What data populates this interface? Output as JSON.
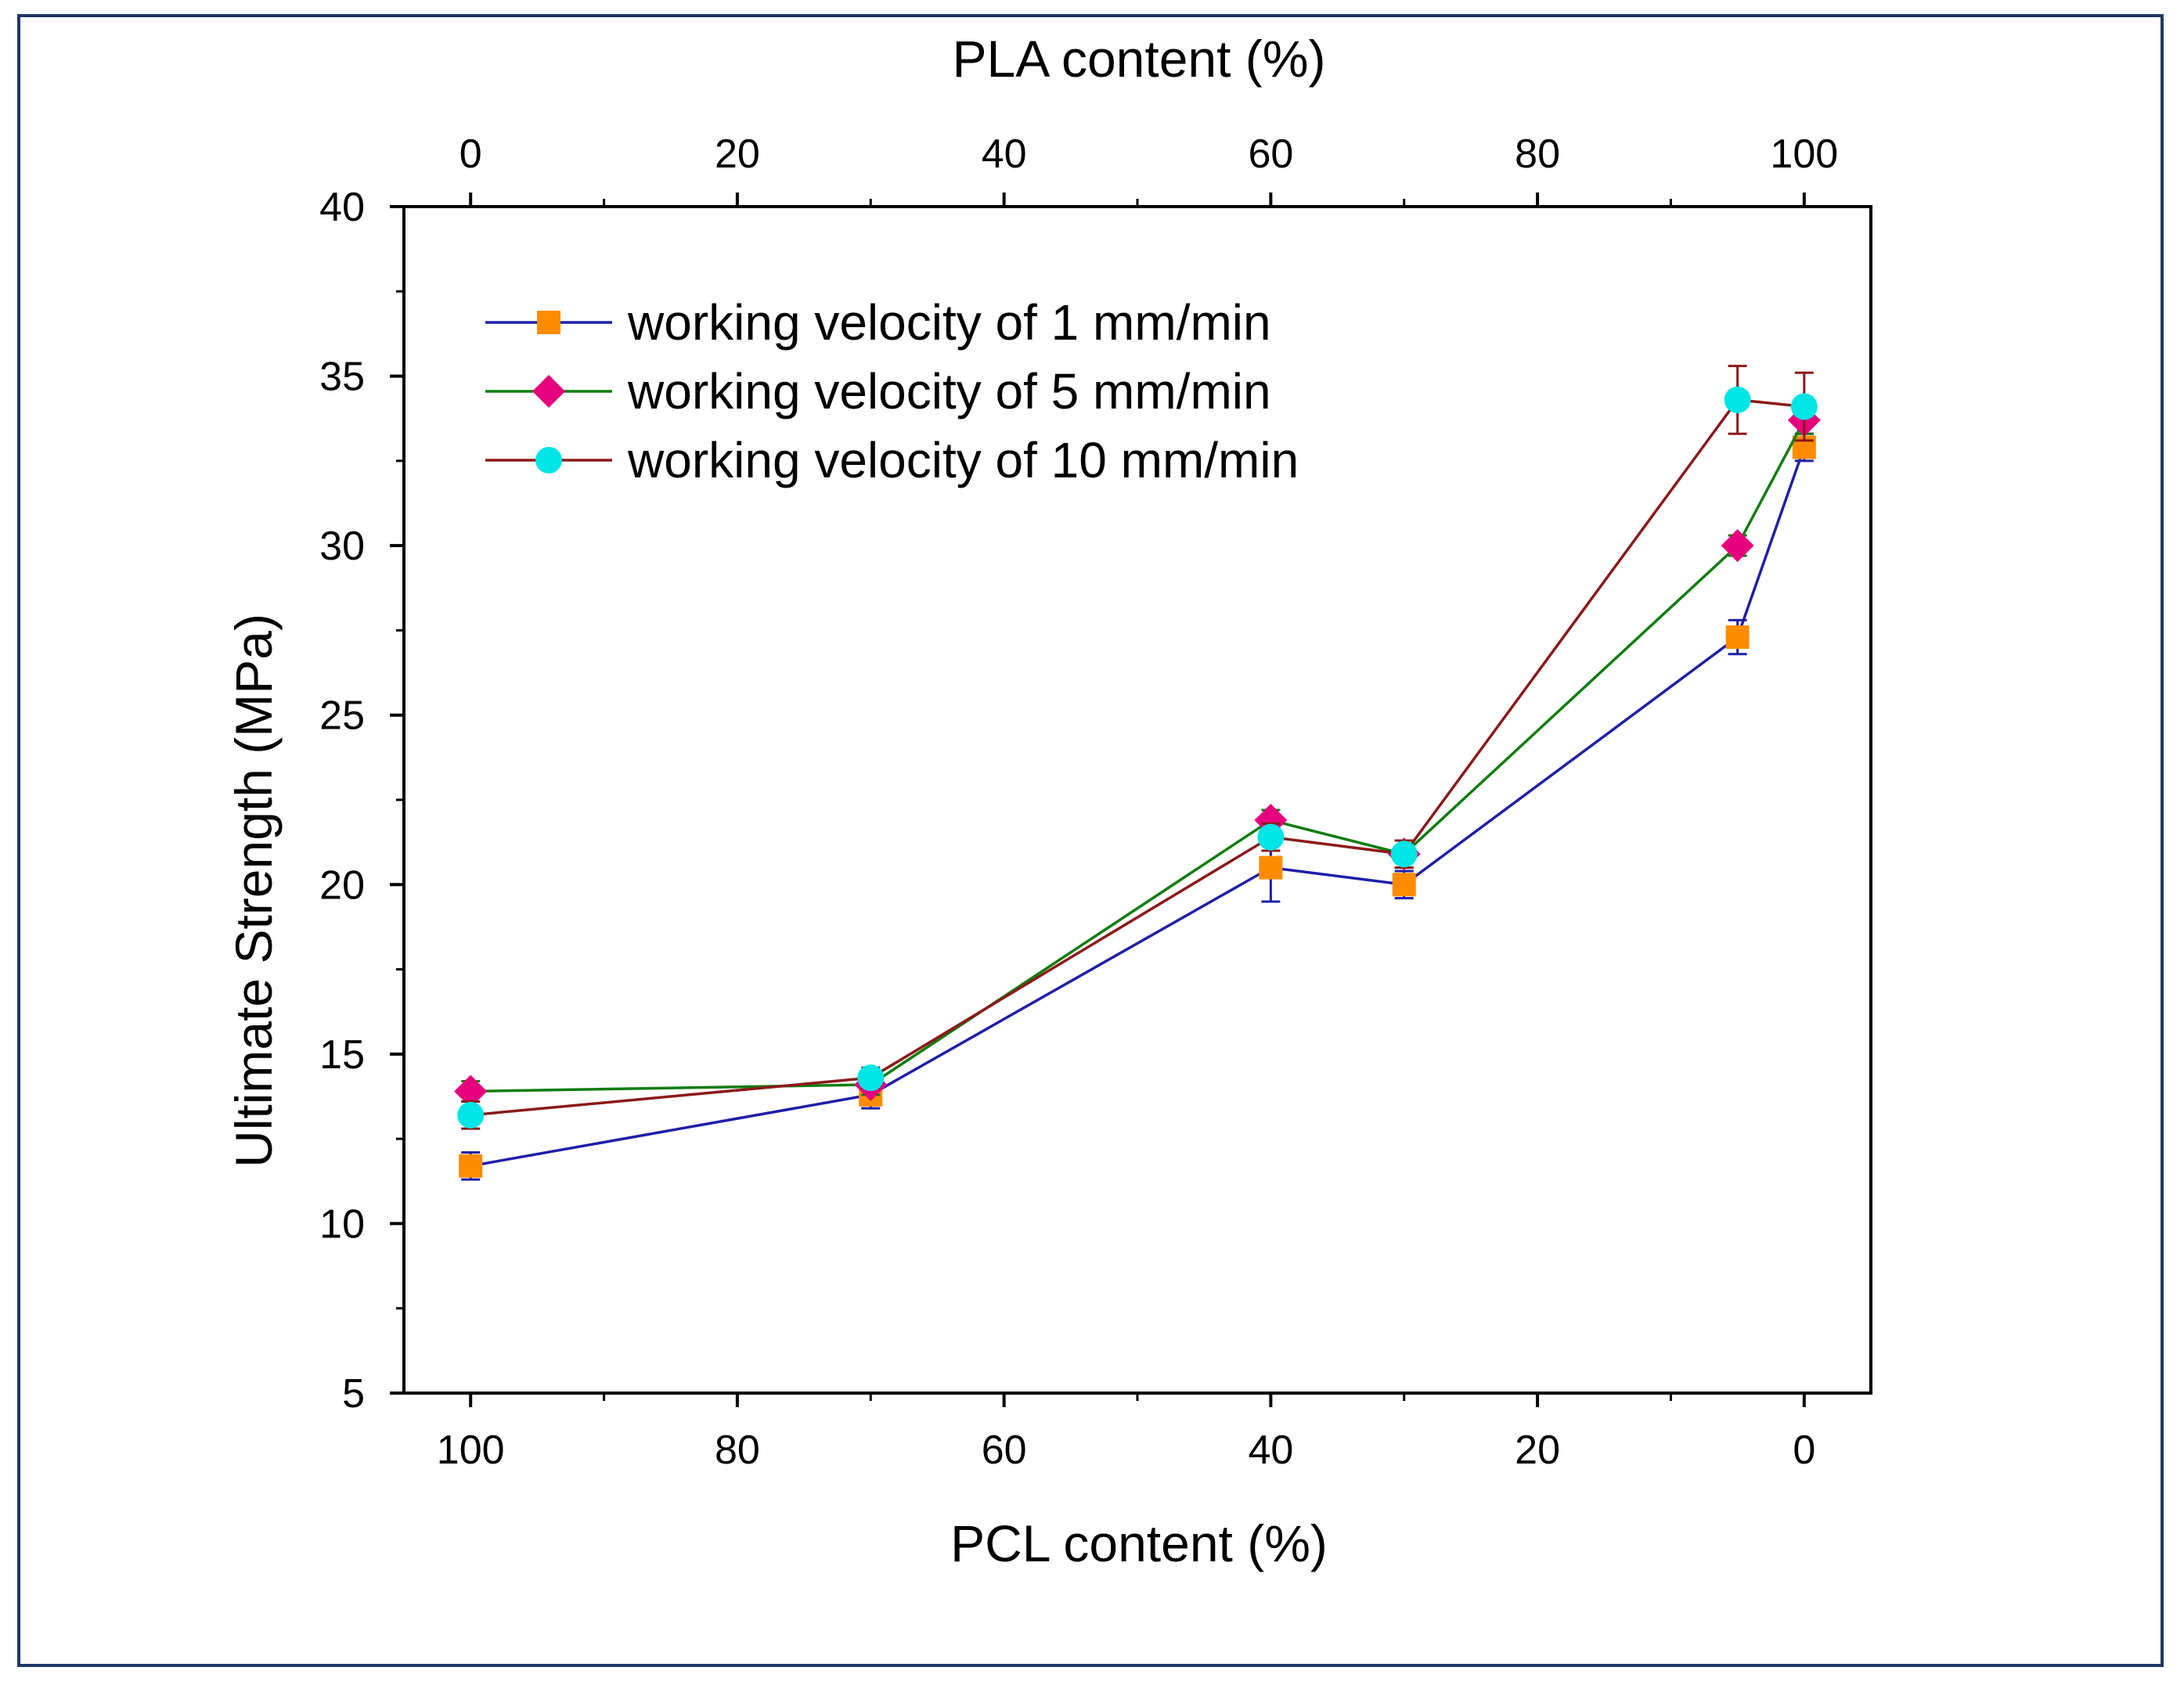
{
  "chart_data": {
    "type": "line",
    "title": "",
    "xlabel": "PCL content (%)",
    "x2label": "PLA content (%)",
    "ylabel": "Ultimate Strength (MPa)",
    "xlim": [
      105,
      -5
    ],
    "x2lim": [
      -5,
      105
    ],
    "ylim": [
      5,
      40
    ],
    "x_ticks": [
      100,
      80,
      60,
      40,
      20,
      0
    ],
    "x2_ticks": [
      0,
      20,
      40,
      60,
      80,
      100
    ],
    "y_ticks": [
      5,
      10,
      15,
      20,
      25,
      30,
      35,
      40
    ],
    "x_tick_labels": [
      "100",
      "80",
      "60",
      "40",
      "20",
      "0"
    ],
    "x2_tick_labels": [
      "0",
      "20",
      "40",
      "60",
      "80",
      "100"
    ],
    "y_tick_labels": [
      "5",
      "10",
      "15",
      "20",
      "25",
      "30",
      "35",
      "40"
    ],
    "grid": false,
    "legend_position": "top-left",
    "x": [
      100,
      70,
      40,
      30,
      5,
      0
    ],
    "series": [
      {
        "name": "working velocity of 1 mm/min",
        "line_color": "#1f1fa8",
        "marker_color": "#ff8c00",
        "marker": "square",
        "values": [
          11.7,
          13.8,
          20.5,
          20.0,
          27.3,
          32.9
        ],
        "errors": [
          0.4,
          0.4,
          1.0,
          0.4,
          0.5,
          0.4
        ]
      },
      {
        "name": "working velocity of 5 mm/min",
        "line_color": "#0f7d0f",
        "marker_color": "#e6007e",
        "marker": "diamond",
        "values": [
          13.9,
          14.1,
          21.9,
          20.9,
          30.0,
          33.7
        ],
        "errors": [
          0.3,
          0.3,
          0.3,
          0.4,
          0.3,
          0.4
        ]
      },
      {
        "name": "working velocity of 10 mm/min",
        "line_color": "#8b1a1a",
        "marker_color": "#00e5e5",
        "marker": "circle",
        "values": [
          13.2,
          14.3,
          21.4,
          20.9,
          34.3,
          34.1
        ],
        "errors": [
          0.4,
          0.3,
          0.4,
          0.4,
          1.0,
          1.0
        ]
      }
    ]
  }
}
